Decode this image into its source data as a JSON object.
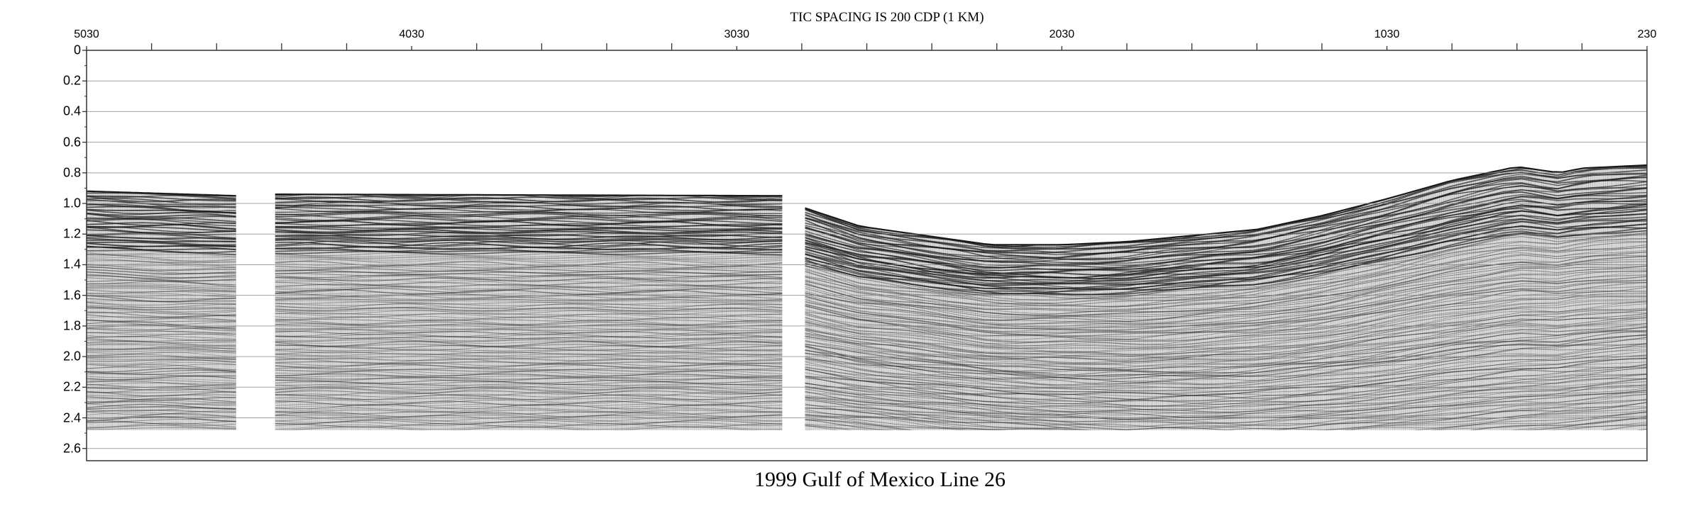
{
  "figure": {
    "top_title": "TIC SPACING IS 200 CDP (1 KM)",
    "bottom_title": "1999 Gulf of Mexico Line 26",
    "cdp_axis": {
      "labels": [
        "5030",
        "4030",
        "3030",
        "2030",
        "1030",
        "230"
      ],
      "label_values": [
        5030,
        4030,
        3030,
        2030,
        1030,
        230
      ],
      "tick_values": [
        5030,
        4830,
        4630,
        4430,
        4230,
        4030,
        3830,
        3630,
        3430,
        3230,
        3030,
        2830,
        2630,
        2430,
        2230,
        2030,
        1830,
        1630,
        1430,
        1230,
        1030,
        830,
        630,
        430,
        230
      ],
      "range": [
        5030,
        230
      ],
      "direction": "decreasing-left-to-right"
    },
    "time_axis": {
      "labels": [
        "0",
        "0.2",
        "0.4",
        "0.6",
        "0.8",
        "1.0",
        "1.2",
        "1.4",
        "1.6",
        "1.8",
        "2.0",
        "2.2",
        "2.4",
        "2.6"
      ],
      "values": [
        0,
        0.2,
        0.4,
        0.6,
        0.8,
        1.0,
        1.2,
        1.4,
        1.6,
        1.8,
        2.0,
        2.2,
        2.4,
        2.6
      ],
      "range": [
        0,
        2.68
      ],
      "unit_shown": "",
      "gridlines": true
    },
    "data_segments": [
      {
        "name": "segment-1",
        "cdp_start": 5030,
        "cdp_end": 4570,
        "top_time_start": 0.92,
        "top_time_end": 0.95,
        "bottom_time": 2.48
      },
      {
        "name": "segment-2",
        "cdp_start": 4450,
        "cdp_end": 2890,
        "top_time_start": 0.94,
        "top_time_end": 0.95,
        "bottom_time": 2.48
      },
      {
        "name": "segment-3",
        "cdp_start": 2820,
        "cdp_end": 230,
        "bottom_time": 2.48
      }
    ],
    "seafloor_profile": {
      "cdp": [
        2820,
        2650,
        2450,
        2250,
        2030,
        1830,
        1630,
        1430,
        1230,
        1030,
        830,
        630,
        500,
        430,
        330,
        230
      ],
      "time": [
        1.03,
        1.15,
        1.21,
        1.27,
        1.27,
        1.25,
        1.21,
        1.17,
        1.08,
        0.97,
        0.85,
        0.76,
        0.8,
        0.77,
        0.76,
        0.75
      ]
    },
    "colors": {
      "background": "#ffffff",
      "seismic": "#1a1a1a",
      "grid": "#8a8a8a",
      "frame": "#333333"
    }
  }
}
